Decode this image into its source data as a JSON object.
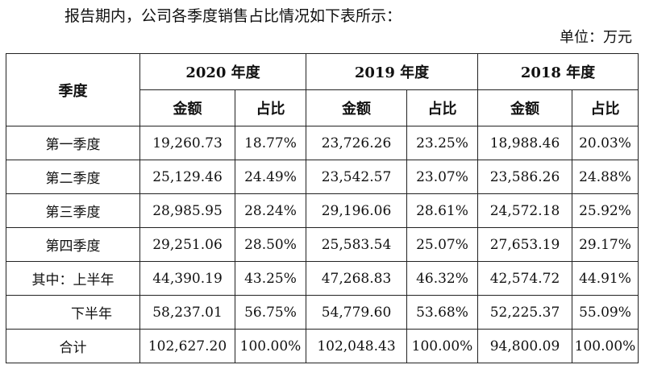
{
  "intro_text": "报告期内，公司各季度销售占比情况如下表所示：",
  "unit_text": "单位：万元",
  "header": {
    "season": "季度",
    "years": [
      "2020 年度",
      "2019 年度",
      "2018 年度"
    ],
    "amount": "金额",
    "ratio": "占比"
  },
  "rows": [
    {
      "label": "第一季度",
      "cells": [
        "19,260.73",
        "18.77%",
        "23,726.26",
        "23.25%",
        "18,988.46",
        "20.03%"
      ]
    },
    {
      "label": "第二季度",
      "cells": [
        "25,129.46",
        "24.49%",
        "23,542.57",
        "23.07%",
        "23,586.26",
        "24.88%"
      ]
    },
    {
      "label": "第三季度",
      "cells": [
        "28,985.95",
        "28.24%",
        "29,196.06",
        "28.61%",
        "24,572.18",
        "25.92%"
      ]
    },
    {
      "label": "第四季度",
      "cells": [
        "29,251.06",
        "28.50%",
        "25,583.54",
        "25.07%",
        "27,653.19",
        "29.17%"
      ]
    },
    {
      "label": "其中：上半年",
      "cells": [
        "44,390.19",
        "43.25%",
        "47,268.83",
        "46.32%",
        "42,574.72",
        "44.91%"
      ]
    },
    {
      "label": "下半年",
      "cells": [
        "58,237.01",
        "56.75%",
        "54,779.60",
        "53.68%",
        "52,225.37",
        "55.09%"
      ]
    },
    {
      "label": "合计",
      "cells": [
        "102,627.20",
        "100.00%",
        "102,048.43",
        "100.00%",
        "94,800.09",
        "100.00%"
      ]
    }
  ]
}
